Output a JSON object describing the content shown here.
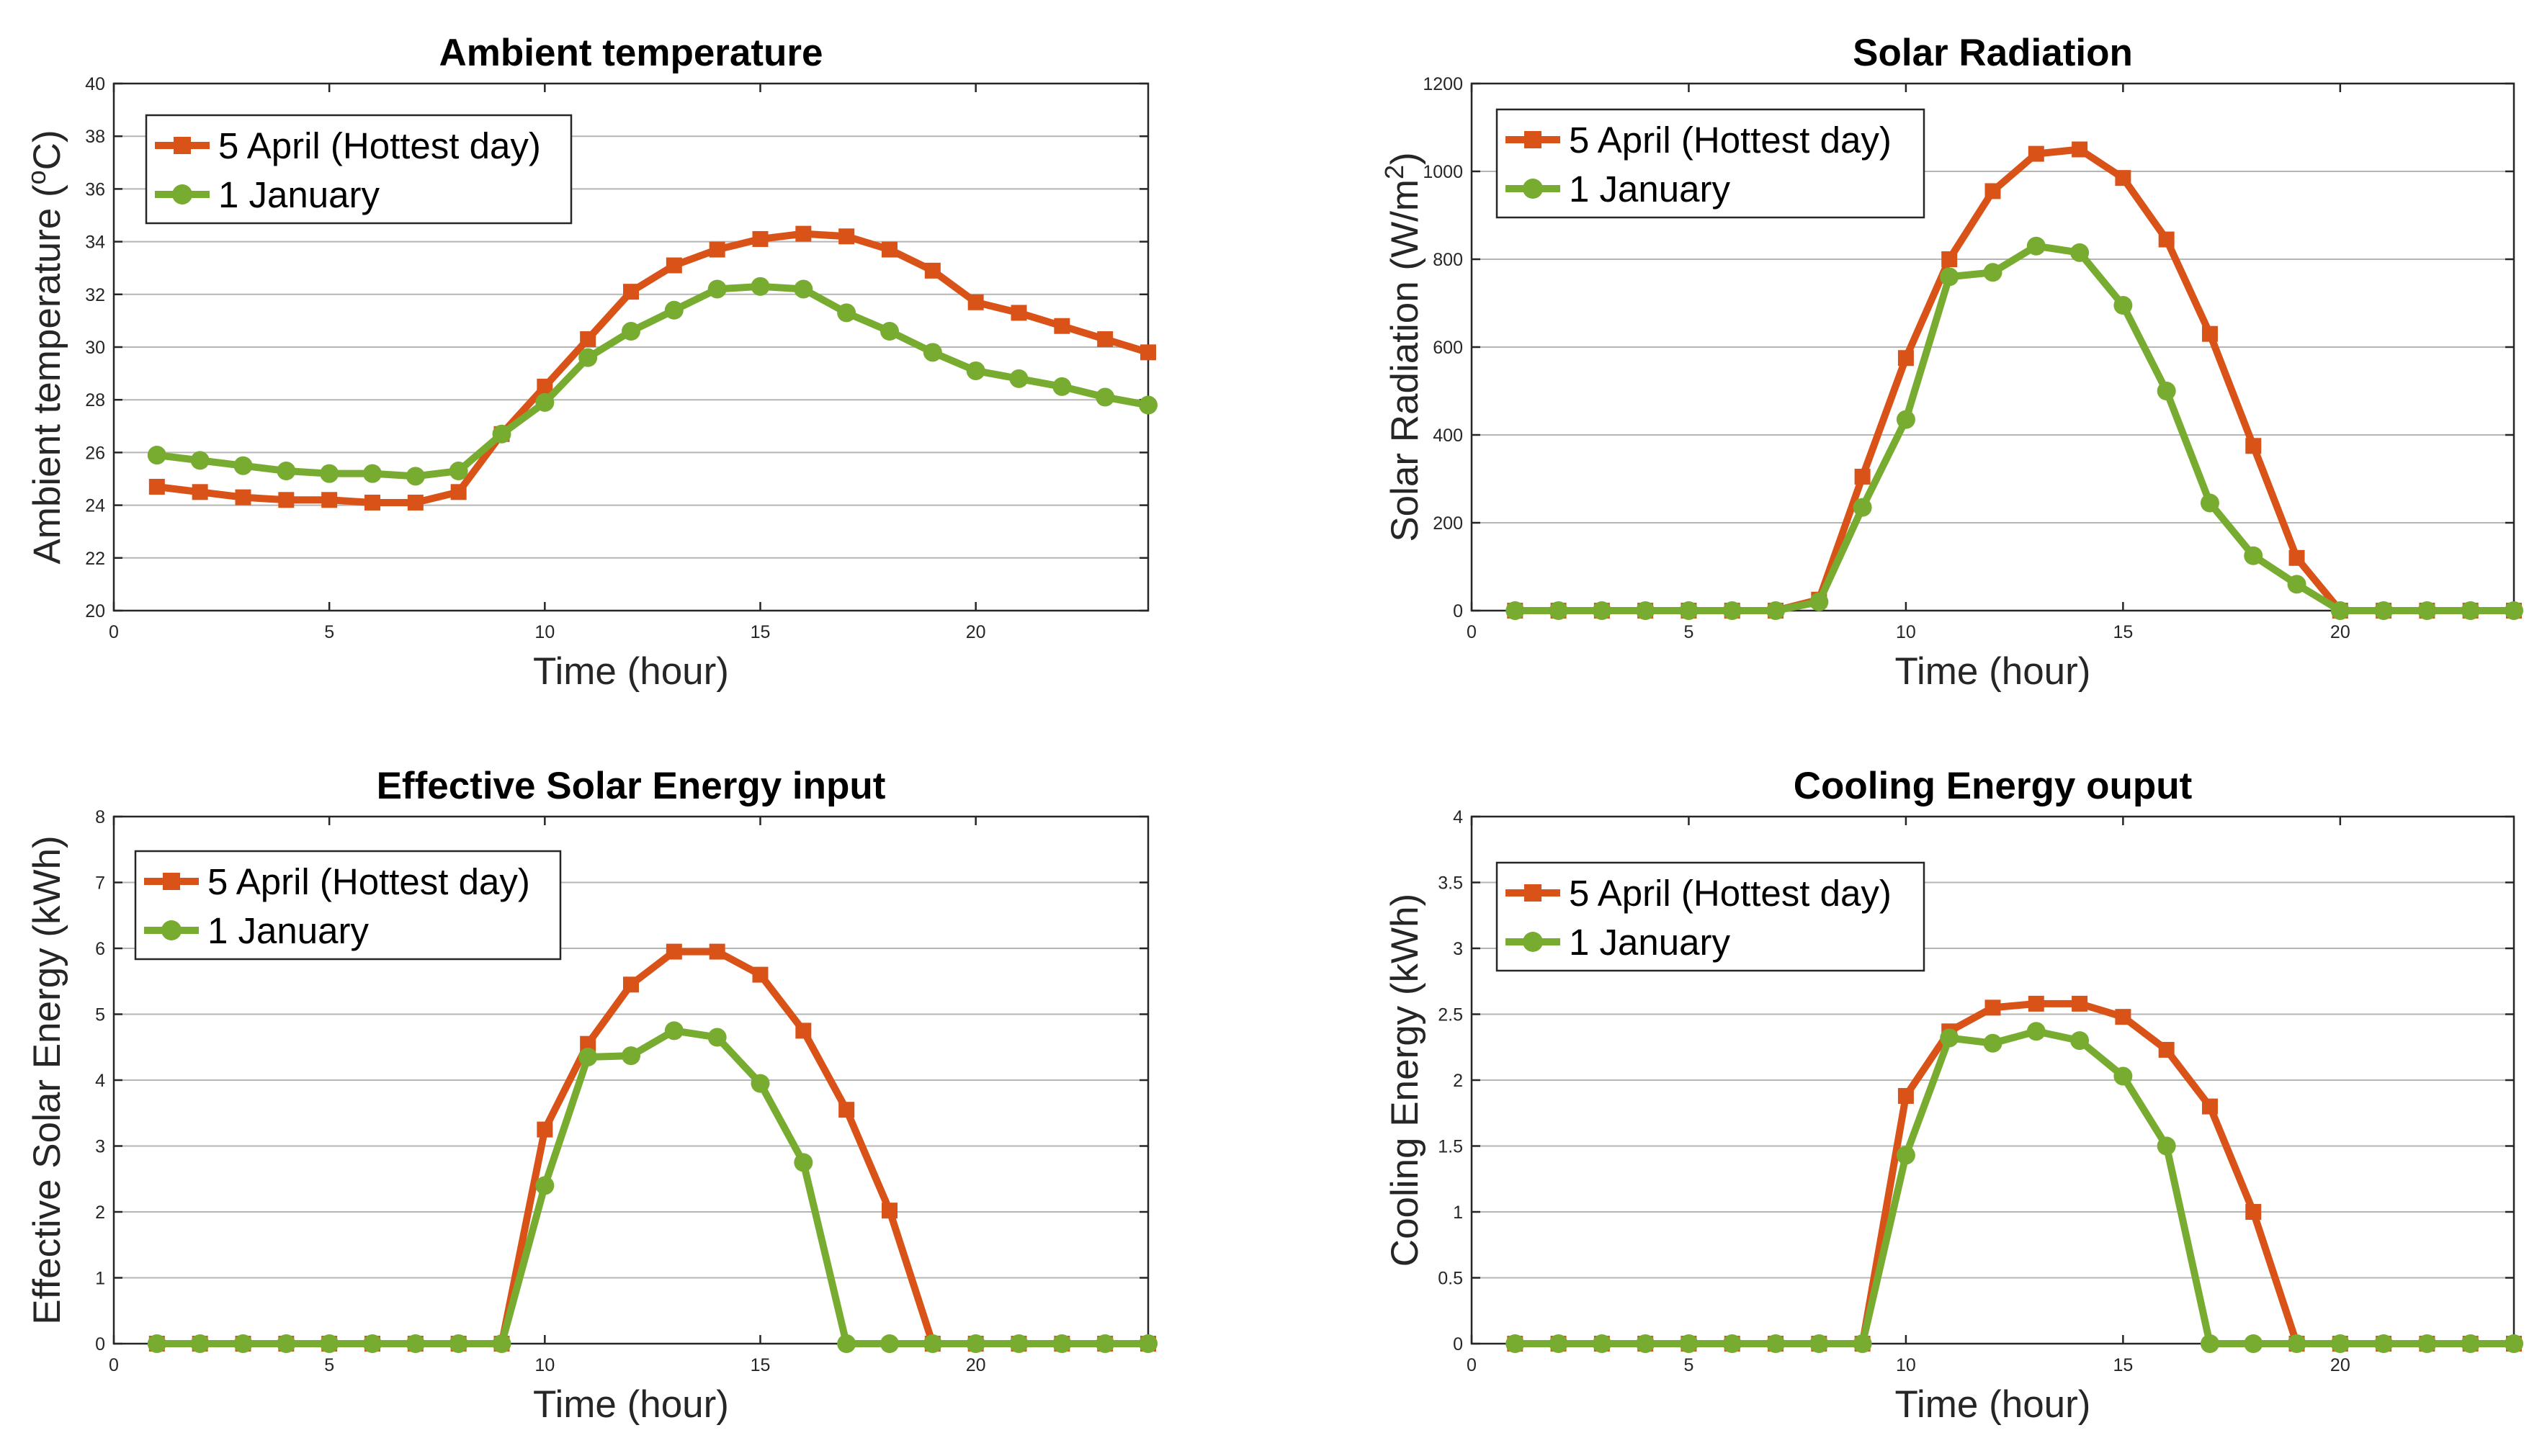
{
  "figure": {
    "series_colors": {
      "april": "#d95319",
      "january": "#77ac30"
    },
    "series_names": [
      "5 April (Hottest day)",
      "1 January"
    ]
  },
  "chart_data": [
    {
      "type": "line",
      "title": "Ambient temperature",
      "xlabel": "Time (hour)",
      "ylabel": "Ambient temperature (",
      "ylabel_sup": "o",
      "ylabel_post": "C)",
      "xlim": [
        0,
        24
      ],
      "ylim": [
        20,
        40
      ],
      "xticks": [
        0,
        5,
        10,
        15,
        20
      ],
      "yticks": [
        20,
        22,
        24,
        26,
        28,
        30,
        32,
        34,
        36,
        38,
        40
      ],
      "legend": "top-left",
      "x": [
        1,
        2,
        3,
        4,
        5,
        6,
        7,
        8,
        9,
        10,
        11,
        12,
        13,
        14,
        15,
        16,
        17,
        18,
        19,
        20,
        21,
        22,
        23,
        24
      ],
      "series": [
        {
          "name": "5 April (Hottest day)",
          "color": "#d95319",
          "marker": "square",
          "values": [
            24.7,
            24.5,
            24.3,
            24.2,
            24.2,
            24.1,
            24.1,
            24.5,
            26.7,
            28.5,
            30.3,
            32.1,
            33.1,
            33.7,
            34.1,
            34.3,
            34.2,
            33.7,
            32.9,
            31.7,
            31.3,
            30.8,
            30.3,
            29.8
          ]
        },
        {
          "name": "1 January",
          "color": "#77ac30",
          "marker": "circle",
          "values": [
            25.9,
            25.7,
            25.5,
            25.3,
            25.2,
            25.2,
            25.1,
            25.3,
            26.7,
            27.9,
            29.6,
            30.6,
            31.4,
            32.2,
            32.3,
            32.2,
            31.3,
            30.6,
            29.8,
            29.1,
            28.8,
            28.5,
            28.1,
            27.8
          ]
        }
      ]
    },
    {
      "type": "line",
      "title": "Solar Radiation",
      "xlabel": "Time (hour)",
      "ylabel": "Solar Radiation (W/m",
      "ylabel_sup": "2",
      "ylabel_post": ")",
      "xlim": [
        0,
        24
      ],
      "ylim": [
        0,
        1200
      ],
      "xticks": [
        0,
        5,
        10,
        15,
        20
      ],
      "yticks": [
        0,
        200,
        400,
        600,
        800,
        1000,
        1200
      ],
      "legend": "top-left",
      "x": [
        1,
        2,
        3,
        4,
        5,
        6,
        7,
        8,
        9,
        10,
        11,
        12,
        13,
        14,
        15,
        16,
        17,
        18,
        19,
        20,
        21,
        22,
        23,
        24
      ],
      "series": [
        {
          "name": "5 April (Hottest day)",
          "color": "#d95319",
          "marker": "square",
          "values": [
            0,
            0,
            0,
            0,
            0,
            0,
            0,
            25,
            305,
            575,
            800,
            955,
            1040,
            1050,
            985,
            845,
            630,
            375,
            120,
            0,
            0,
            0,
            0,
            0
          ]
        },
        {
          "name": "1 January",
          "color": "#77ac30",
          "marker": "circle",
          "values": [
            0,
            0,
            0,
            0,
            0,
            0,
            0,
            20,
            235,
            435,
            760,
            770,
            830,
            815,
            695,
            500,
            245,
            125,
            60,
            0,
            0,
            0,
            0,
            0
          ]
        }
      ]
    },
    {
      "type": "line",
      "title": "Effective Solar Energy input",
      "xlabel": "Time (hour)",
      "ylabel": "Effective Solar Energy (kWh)",
      "ylabel_sup": "",
      "ylabel_post": "",
      "xlim": [
        0,
        24
      ],
      "ylim": [
        0,
        8
      ],
      "xticks": [
        0,
        5,
        10,
        15,
        20
      ],
      "yticks": [
        0,
        1,
        2,
        3,
        4,
        5,
        6,
        7,
        8
      ],
      "legend": "top-left",
      "x": [
        1,
        2,
        3,
        4,
        5,
        6,
        7,
        8,
        9,
        10,
        11,
        12,
        13,
        14,
        15,
        16,
        17,
        18,
        19,
        20,
        21,
        22,
        23,
        24
      ],
      "series": [
        {
          "name": "5 April (Hottest day)",
          "color": "#d95319",
          "marker": "square",
          "values": [
            0,
            0,
            0,
            0,
            0,
            0,
            0,
            0,
            0,
            3.25,
            4.55,
            5.45,
            5.95,
            5.95,
            5.6,
            4.75,
            3.55,
            2.02,
            0,
            0,
            0,
            0,
            0,
            0
          ]
        },
        {
          "name": "1 January",
          "color": "#77ac30",
          "marker": "circle",
          "values": [
            0,
            0,
            0,
            0,
            0,
            0,
            0,
            0,
            0,
            2.4,
            4.35,
            4.37,
            4.75,
            4.65,
            3.95,
            2.75,
            0,
            0,
            0,
            0,
            0,
            0,
            0,
            0
          ]
        }
      ]
    },
    {
      "type": "line",
      "title": "Cooling Energy ouput",
      "xlabel": "Time (hour)",
      "ylabel": "Cooling Energy (kWh)",
      "ylabel_sup": "",
      "ylabel_post": "",
      "xlim": [
        0,
        24
      ],
      "ylim": [
        0,
        4
      ],
      "xticks": [
        0,
        5,
        10,
        15,
        20
      ],
      "yticks": [
        0,
        0.5,
        1,
        1.5,
        2,
        2.5,
        3,
        3.5,
        4
      ],
      "legend": "top-left",
      "x": [
        1,
        2,
        3,
        4,
        5,
        6,
        7,
        8,
        9,
        10,
        11,
        12,
        13,
        14,
        15,
        16,
        17,
        18,
        19,
        20,
        21,
        22,
        23,
        24
      ],
      "series": [
        {
          "name": "5 April (Hottest day)",
          "color": "#d95319",
          "marker": "square",
          "values": [
            0,
            0,
            0,
            0,
            0,
            0,
            0,
            0,
            0,
            1.88,
            2.37,
            2.55,
            2.58,
            2.58,
            2.48,
            2.23,
            1.8,
            1.0,
            0,
            0,
            0,
            0,
            0,
            0
          ]
        },
        {
          "name": "1 January",
          "color": "#77ac30",
          "marker": "circle",
          "values": [
            0,
            0,
            0,
            0,
            0,
            0,
            0,
            0,
            0,
            1.43,
            2.32,
            2.28,
            2.37,
            2.3,
            2.03,
            1.5,
            0,
            0,
            0,
            0,
            0,
            0,
            0,
            0
          ]
        }
      ]
    }
  ]
}
